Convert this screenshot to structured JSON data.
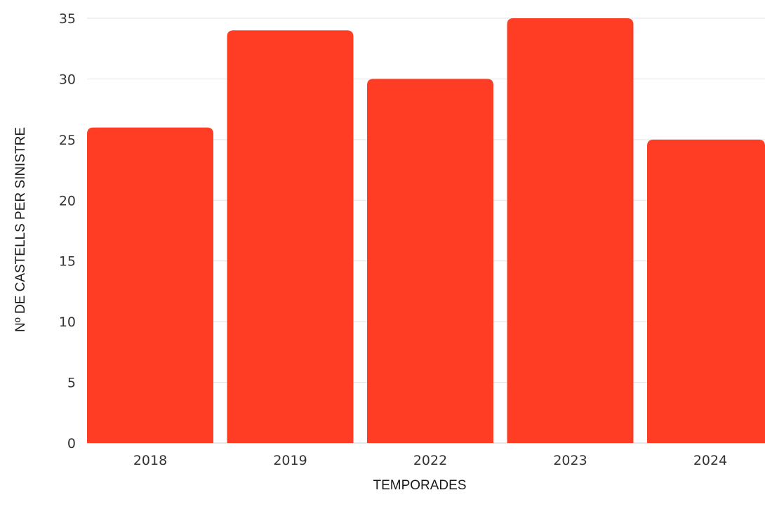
{
  "chart_data": {
    "type": "bar",
    "title": "",
    "xlabel": "TEMPORADES",
    "ylabel": "Nº DE CASTELLS PER SINISTRE",
    "categories": [
      "2018",
      "2019",
      "2022",
      "2023",
      "2024"
    ],
    "values": [
      26,
      34,
      30,
      35,
      25
    ],
    "ylim": [
      0,
      35
    ],
    "yticks": [
      0,
      5,
      10,
      15,
      20,
      25,
      30,
      35
    ],
    "grid": true,
    "bar_color": "#ff3d24"
  }
}
